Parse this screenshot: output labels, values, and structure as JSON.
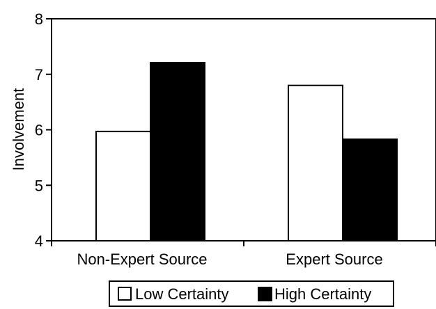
{
  "chart_data": {
    "type": "bar",
    "title": "",
    "xlabel": "",
    "ylabel": "Involvement",
    "categories": [
      "Non-Expert Source",
      "Expert Source"
    ],
    "series": [
      {
        "name": "Low Certainty",
        "values": [
          5.97,
          6.8
        ],
        "color": "#ffffff"
      },
      {
        "name": "High Certainty",
        "values": [
          7.21,
          5.83
        ],
        "color": "#000000"
      }
    ],
    "ylim": [
      4,
      8
    ],
    "yticks": [
      4,
      5,
      6,
      7,
      8
    ],
    "grid": false,
    "legend_position": "bottom"
  }
}
